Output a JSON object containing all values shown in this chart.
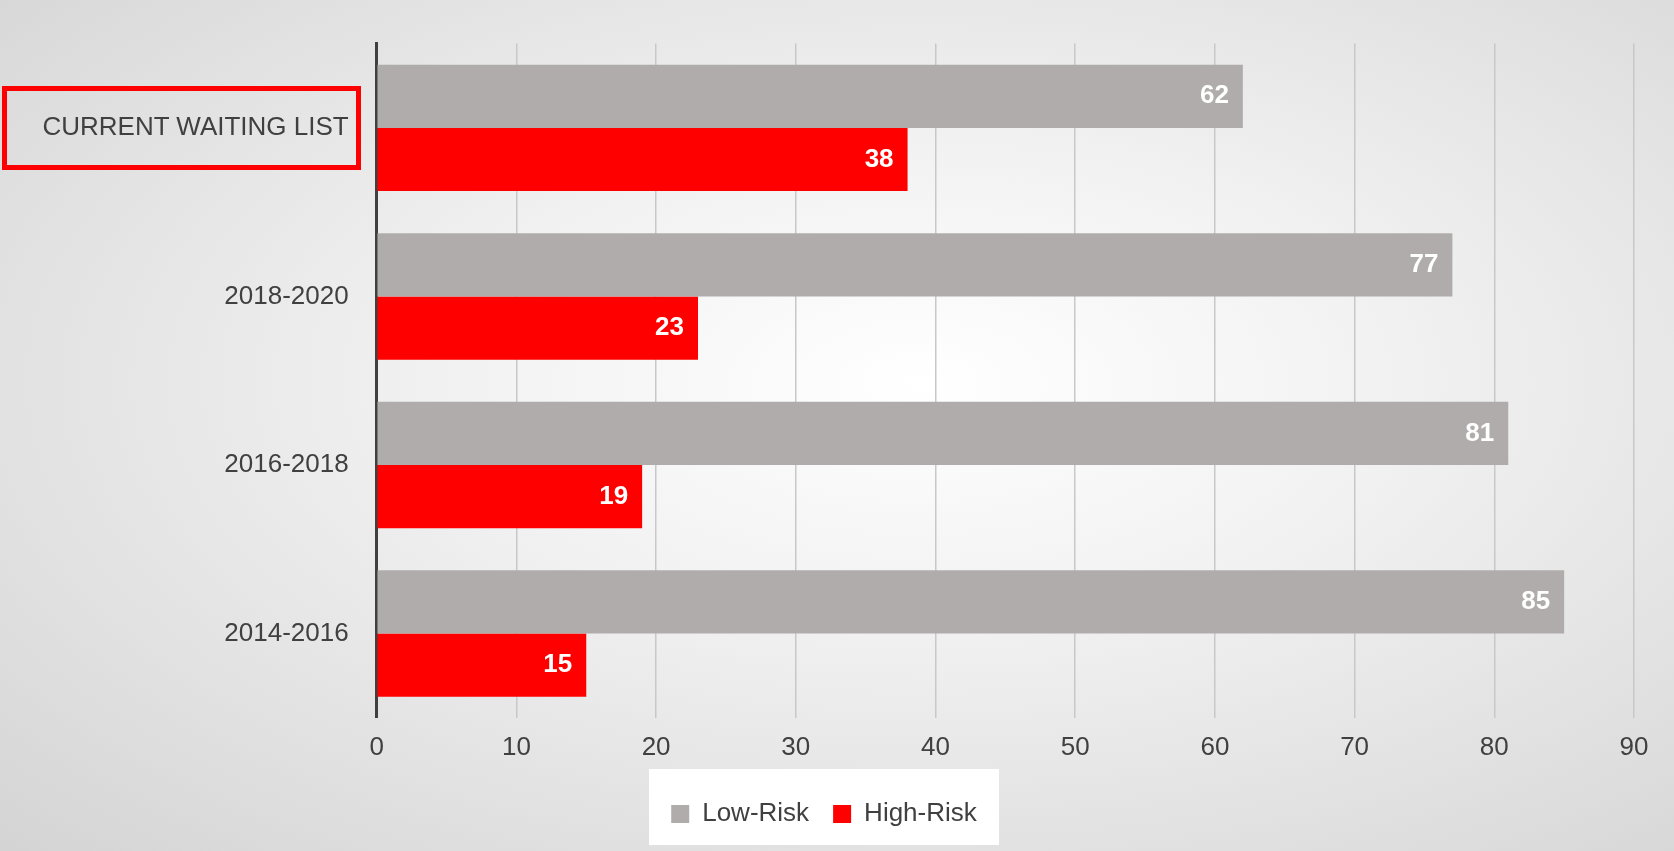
{
  "chart_data": {
    "type": "bar",
    "orientation": "horizontal",
    "categories": [
      "CURRENT WAITING LIST",
      "2018-2020",
      "2016-2018",
      "2014-2016"
    ],
    "series": [
      {
        "name": "Low-Risk",
        "color": "#b0acab",
        "values": [
          62,
          77,
          81,
          85
        ]
      },
      {
        "name": "High-Risk",
        "color": "#ff0000",
        "values": [
          38,
          23,
          19,
          15
        ]
      }
    ],
    "xlim": [
      0,
      90
    ],
    "xticks": [
      0,
      10,
      20,
      30,
      40,
      50,
      60,
      70,
      80,
      90
    ],
    "grid": "x",
    "legend": "bottom",
    "data_labels": true
  }
}
